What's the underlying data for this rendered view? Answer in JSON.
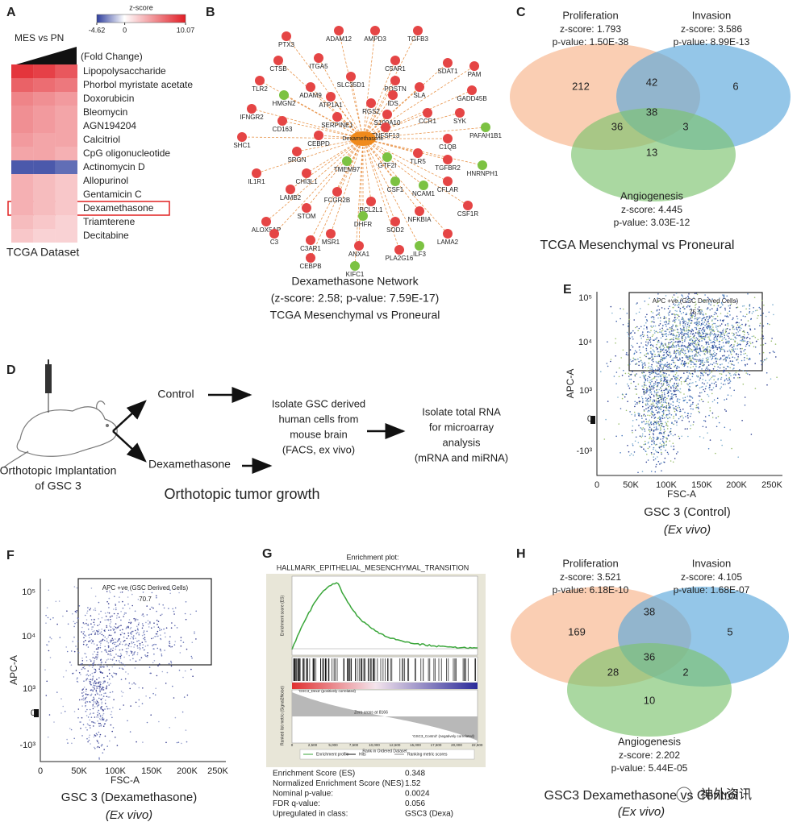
{
  "panel_a": {
    "letter": "A",
    "colorbar_title": "z-score",
    "colorbar_ticks": [
      -4.62,
      0,
      10.07
    ],
    "comparison": "MES vs PN",
    "fold_change": "(Fold Change)",
    "rows": [
      {
        "name": "Lipopolysaccharide",
        "values": [
          9,
          8.5,
          7.5
        ]
      },
      {
        "name": "Phorbol myristate acetate",
        "values": [
          7,
          6.5,
          6
        ]
      },
      {
        "name": "Doxorubicin",
        "values": [
          5.5,
          5,
          4.5
        ]
      },
      {
        "name": "Bleomycin",
        "values": [
          5,
          4.5,
          4
        ]
      },
      {
        "name": "AGN194204",
        "values": [
          5,
          4.5,
          4
        ]
      },
      {
        "name": "Calcitriol",
        "values": [
          4.5,
          4,
          4
        ]
      },
      {
        "name": "CpG oligonucleotide",
        "values": [
          4,
          4,
          3.5
        ]
      },
      {
        "name": "Actinomycin D",
        "values": [
          -4,
          -4,
          -3.5
        ]
      },
      {
        "name": "Allopurinol",
        "values": [
          3.5,
          3,
          2.5
        ]
      },
      {
        "name": "Gentamicin C",
        "values": [
          3.5,
          3,
          2.5
        ]
      },
      {
        "name": "Dexamethasone",
        "values": [
          3.5,
          3,
          2.5
        ]
      },
      {
        "name": "Triamterene",
        "values": [
          3,
          2.5,
          2
        ]
      },
      {
        "name": "Decitabine",
        "values": [
          2.5,
          2,
          2
        ]
      }
    ],
    "caption": "TCGA Dataset"
  },
  "panel_b": {
    "letter": "B",
    "center": "Dexamethasone",
    "nodes": [
      "PTX3",
      "ADAM12",
      "AMPD3",
      "TGFB3",
      "CTSB",
      "ITGA5",
      "C5AR1",
      "SDAT1",
      "PAM",
      "TLR2",
      "SLC35D1",
      "POSTN",
      "ADAM9",
      "HMGN2",
      "ATP1A1",
      "SLA",
      "GADD45B",
      "IFNGR2",
      "RGS2",
      "IDS",
      "CCR1",
      "SYK",
      "CD163",
      "SERPINE1",
      "S100A10",
      "PAFAH1B1",
      "SHC1",
      "CEBPD",
      "TNFSF13",
      "C1QB",
      "SRGN",
      "HNRNPH1",
      "TLR5",
      "TGFBR2",
      "CHI3L1",
      "TMEM97",
      "GTF2I",
      "IL1R1",
      "LAMB2",
      "CFLAR",
      "STOM",
      "CSF1",
      "NCAM1",
      "FCGR2B",
      "BCL2L1",
      "DHFR",
      "CSF1R",
      "ALOX5AP",
      "NFKBIA",
      "SOD2",
      "C3",
      "C3AR1",
      "MSR1",
      "ANXA1",
      "LAMA2",
      "PLA2G16",
      "ILF3",
      "CEBPB",
      "KIFC1"
    ],
    "caption": [
      "Dexamethasone Network",
      "(z-score: 2.58; p-value: 7.59E-17)",
      "TCGA Mesenchymal vs Proneural"
    ]
  },
  "panel_c": {
    "letter": "C",
    "sets": [
      {
        "name": "Proliferation",
        "z": "z-score: 1.793",
        "p": "p-value: 1.50E-38"
      },
      {
        "name": "Invasion",
        "z": "z-score: 3.586",
        "p": "p-value: 8.99E-13"
      },
      {
        "name": "Angiogenesis",
        "z": "z-score: 4.445",
        "p": "p-value: 3.03E-12"
      }
    ],
    "counts": [
      212,
      42,
      6,
      38,
      36,
      3,
      13
    ],
    "caption": "TCGA Mesenchymal vs Proneural"
  },
  "panel_d": {
    "letter": "D",
    "control": "Control",
    "treatment": "Dexamethasone",
    "implant": [
      "Orthotopic Implantation",
      "of GSC 3"
    ],
    "growth": "Orthotopic tumor growth",
    "isolate_cells": [
      "Isolate GSC derived",
      "human cells from",
      "mouse brain",
      "(FACS, ex vivo)"
    ],
    "isolate_rna": [
      "Isolate total RNA",
      "for microarray",
      "analysis",
      "(mRNA and miRNA)"
    ]
  },
  "panel_e": {
    "letter": "E",
    "yticks": [
      "10⁵",
      "10⁴",
      "10³",
      "0",
      "-10³"
    ],
    "xticks": [
      "0",
      "50K",
      "100K",
      "150K",
      "200K",
      "250K"
    ],
    "ylabel": "APC-A",
    "xlabel": "FSC-A",
    "gate": "APC +ve (GSC Derived Cells)",
    "gate_value": "75.5",
    "caption": [
      "GSC 3 (Control)",
      "(Ex vivo)"
    ]
  },
  "panel_f": {
    "letter": "F",
    "yticks": [
      "10⁵",
      "10⁴",
      "10³",
      "0",
      "-10³"
    ],
    "xticks": [
      "0",
      "50K",
      "100K",
      "150K",
      "200K",
      "250K"
    ],
    "ylabel": "APC-A",
    "xlabel": "FSC-A",
    "gate": "APC +ve (GSC Derived Cells)",
    "gate_value": "70.7",
    "caption": [
      "GSC 3 (Dexamethasone)",
      "(Ex vivo)"
    ]
  },
  "panel_g": {
    "letter": "G",
    "title": [
      "Enrichment plot:",
      "HALLMARK_EPITHELIAL_MESENCHYMAL_TRANSITION"
    ],
    "es_label": "Enrichment score (ES)",
    "metric_label": "Ranked list metric (Signal2Noise)",
    "zero_cross": "Zero cross at 8166",
    "pos_class": "'GSC3_Dexa' (positively correlated)",
    "neg_class": "'GSC3_Control' (negatively correlated)",
    "xlabel": "Rank in Ordered Dataset",
    "legend": [
      "Enrichment profile",
      "Hits",
      "Ranking metric scores"
    ],
    "xticks": [
      "0",
      "2,500",
      "5,000",
      "7,500",
      "10,000",
      "12,500",
      "15,000",
      "17,500",
      "20,000",
      "22,500"
    ],
    "stats": [
      [
        "Enrichment Score (ES)",
        "0.348"
      ],
      [
        "Normalized Enrichment Score (NES)",
        "1.52"
      ],
      [
        "Nominal p-value:",
        "0.0024"
      ],
      [
        "FDR q-value:",
        "0.056"
      ],
      [
        "Upregulated in class:",
        "GSC3 (Dexa)"
      ]
    ]
  },
  "panel_h": {
    "letter": "H",
    "sets": [
      {
        "name": "Proliferation",
        "z": "z-score: 3.521",
        "p": "p-value: 6.18E-10"
      },
      {
        "name": "Invasion",
        "z": "z-score: 4.105",
        "p": "p-value: 1.68E-07"
      },
      {
        "name": "Angiogenesis",
        "z": "z-score: 2.202",
        "p": "p-value: 5.44E-05"
      }
    ],
    "counts": [
      169,
      38,
      5,
      36,
      28,
      2,
      10
    ],
    "caption": [
      "GSC3 Dexamethasone vs Control",
      "(Ex vivo)"
    ]
  },
  "watermark": "神外资讯"
}
